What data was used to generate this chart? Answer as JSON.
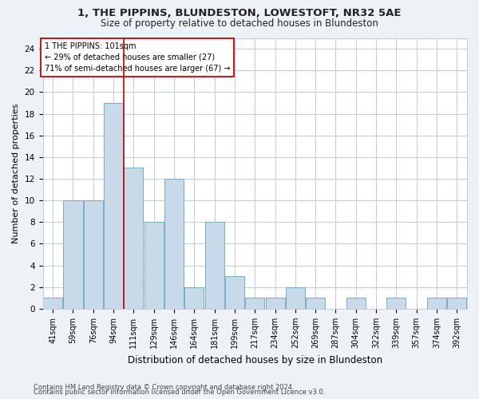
{
  "title1": "1, THE PIPPINS, BLUNDESTON, LOWESTOFT, NR32 5AE",
  "title2": "Size of property relative to detached houses in Blundeston",
  "xlabel": "Distribution of detached houses by size in Blundeston",
  "ylabel": "Number of detached properties",
  "bar_color": "#c8daea",
  "bar_edge_color": "#7aaac8",
  "vline_color": "#cc0000",
  "annotation_line1": "1 THE PIPPINS: 101sqm",
  "annotation_line2": "← 29% of detached houses are smaller (27)",
  "annotation_line3": "71% of semi-detached houses are larger (67) →",
  "categories": [
    "41sqm",
    "59sqm",
    "76sqm",
    "94sqm",
    "111sqm",
    "129sqm",
    "146sqm",
    "164sqm",
    "181sqm",
    "199sqm",
    "217sqm",
    "234sqm",
    "252sqm",
    "269sqm",
    "287sqm",
    "304sqm",
    "322sqm",
    "339sqm",
    "357sqm",
    "374sqm",
    "392sqm"
  ],
  "values": [
    1,
    10,
    10,
    19,
    13,
    8,
    12,
    2,
    8,
    3,
    1,
    1,
    2,
    1,
    0,
    1,
    0,
    1,
    0,
    1,
    1
  ],
  "ylim": [
    0,
    25
  ],
  "yticks": [
    0,
    2,
    4,
    6,
    8,
    10,
    12,
    14,
    16,
    18,
    20,
    22,
    24
  ],
  "vline_index": 3.5,
  "footer1": "Contains HM Land Registry data © Crown copyright and database right 2024.",
  "footer2": "Contains public sector information licensed under the Open Government Licence v3.0.",
  "bg_color": "#eef2f7",
  "plot_bg_color": "#ffffff",
  "grid_color": "#c0cad6"
}
